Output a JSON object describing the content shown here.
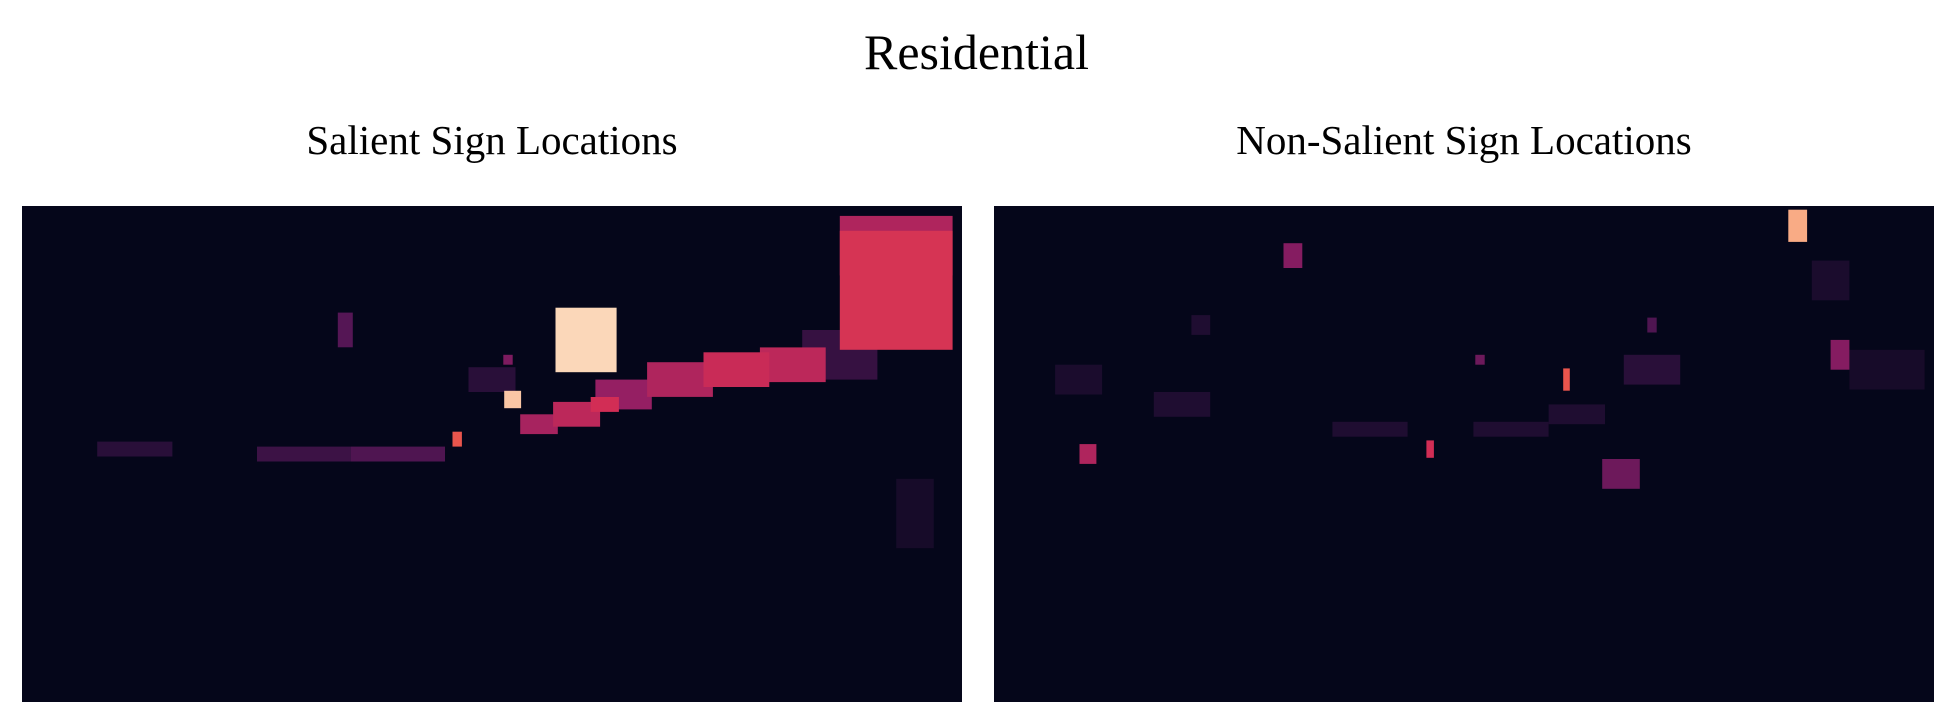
{
  "figure": {
    "suptitle": "Residential"
  },
  "colors": {
    "background": "#05061a",
    "colormap": "inferno-like (rocket)",
    "low": "#05061a",
    "mid": "#a3216a",
    "high": "#fbe2c6"
  },
  "chart_data": [
    {
      "type": "heatmap",
      "title": "Salient Sign Locations",
      "xlabel": "",
      "ylabel": "",
      "grid": false,
      "colormap": "rocket",
      "blobs": [
        {
          "x": 0.93,
          "y": 0.17,
          "w": 0.12,
          "h": 0.24,
          "v": 0.62
        },
        {
          "x": 0.93,
          "y": 0.08,
          "w": 0.12,
          "h": 0.12,
          "v": 0.52
        },
        {
          "x": 0.6,
          "y": 0.27,
          "w": 0.065,
          "h": 0.13,
          "v": 0.98
        },
        {
          "x": 0.522,
          "y": 0.39,
          "w": 0.018,
          "h": 0.035,
          "v": 0.95
        },
        {
          "x": 0.82,
          "y": 0.32,
          "w": 0.07,
          "h": 0.07,
          "v": 0.55
        },
        {
          "x": 0.76,
          "y": 0.33,
          "w": 0.07,
          "h": 0.07,
          "v": 0.58
        },
        {
          "x": 0.7,
          "y": 0.35,
          "w": 0.07,
          "h": 0.07,
          "v": 0.52
        },
        {
          "x": 0.64,
          "y": 0.38,
          "w": 0.06,
          "h": 0.06,
          "v": 0.46
        },
        {
          "x": 0.59,
          "y": 0.42,
          "w": 0.05,
          "h": 0.05,
          "v": 0.55
        },
        {
          "x": 0.55,
          "y": 0.44,
          "w": 0.04,
          "h": 0.04,
          "v": 0.5
        },
        {
          "x": 0.62,
          "y": 0.4,
          "w": 0.03,
          "h": 0.03,
          "v": 0.6
        },
        {
          "x": 0.463,
          "y": 0.47,
          "w": 0.01,
          "h": 0.03,
          "v": 0.72
        },
        {
          "x": 0.344,
          "y": 0.25,
          "w": 0.016,
          "h": 0.07,
          "v": 0.3
        },
        {
          "x": 0.517,
          "y": 0.31,
          "w": 0.01,
          "h": 0.02,
          "v": 0.4
        },
        {
          "x": 0.4,
          "y": 0.5,
          "w": 0.1,
          "h": 0.03,
          "v": 0.28
        },
        {
          "x": 0.3,
          "y": 0.5,
          "w": 0.1,
          "h": 0.03,
          "v": 0.22
        },
        {
          "x": 0.12,
          "y": 0.49,
          "w": 0.08,
          "h": 0.03,
          "v": 0.16
        },
        {
          "x": 0.87,
          "y": 0.3,
          "w": 0.08,
          "h": 0.1,
          "v": 0.2
        },
        {
          "x": 0.95,
          "y": 0.62,
          "w": 0.04,
          "h": 0.14,
          "v": 0.08
        },
        {
          "x": 0.5,
          "y": 0.35,
          "w": 0.05,
          "h": 0.05,
          "v": 0.16
        }
      ]
    },
    {
      "type": "heatmap",
      "title": "Non-Salient Sign Locations",
      "xlabel": "",
      "ylabel": "",
      "grid": false,
      "colormap": "rocket",
      "blobs": [
        {
          "x": 0.855,
          "y": 0.04,
          "w": 0.02,
          "h": 0.065,
          "v": 0.9
        },
        {
          "x": 0.318,
          "y": 0.1,
          "w": 0.02,
          "h": 0.05,
          "v": 0.42
        },
        {
          "x": 0.89,
          "y": 0.15,
          "w": 0.04,
          "h": 0.08,
          "v": 0.1
        },
        {
          "x": 0.9,
          "y": 0.3,
          "w": 0.02,
          "h": 0.06,
          "v": 0.42
        },
        {
          "x": 0.609,
          "y": 0.35,
          "w": 0.007,
          "h": 0.045,
          "v": 0.72
        },
        {
          "x": 0.667,
          "y": 0.54,
          "w": 0.04,
          "h": 0.06,
          "v": 0.36
        },
        {
          "x": 0.1,
          "y": 0.5,
          "w": 0.018,
          "h": 0.04,
          "v": 0.52
        },
        {
          "x": 0.464,
          "y": 0.49,
          "w": 0.008,
          "h": 0.035,
          "v": 0.6
        },
        {
          "x": 0.7,
          "y": 0.33,
          "w": 0.06,
          "h": 0.06,
          "v": 0.16
        },
        {
          "x": 0.55,
          "y": 0.45,
          "w": 0.08,
          "h": 0.03,
          "v": 0.12
        },
        {
          "x": 0.4,
          "y": 0.45,
          "w": 0.08,
          "h": 0.03,
          "v": 0.12
        },
        {
          "x": 0.2,
          "y": 0.4,
          "w": 0.06,
          "h": 0.05,
          "v": 0.12
        },
        {
          "x": 0.09,
          "y": 0.35,
          "w": 0.05,
          "h": 0.06,
          "v": 0.1
        },
        {
          "x": 0.7,
          "y": 0.24,
          "w": 0.01,
          "h": 0.03,
          "v": 0.28
        },
        {
          "x": 0.517,
          "y": 0.31,
          "w": 0.01,
          "h": 0.02,
          "v": 0.36
        },
        {
          "x": 0.22,
          "y": 0.24,
          "w": 0.02,
          "h": 0.04,
          "v": 0.12
        },
        {
          "x": 0.95,
          "y": 0.33,
          "w": 0.08,
          "h": 0.08,
          "v": 0.08
        },
        {
          "x": 0.62,
          "y": 0.42,
          "w": 0.06,
          "h": 0.04,
          "v": 0.12
        }
      ]
    }
  ]
}
